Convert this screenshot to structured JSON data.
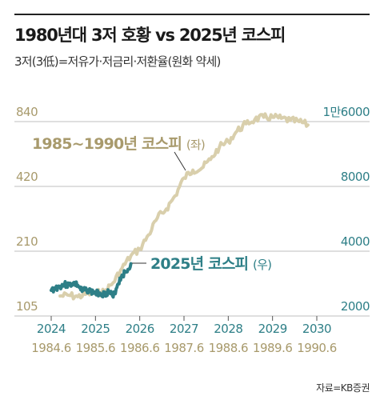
{
  "title": "1980년대 3저 호황 vs 2025년 코스피",
  "subtitle": "3저(3低)=저유가·저금리·저환율(원화 약세)",
  "source": "자료=KB증권",
  "colors": {
    "kospi_1980s": "#d9cfac",
    "kospi_2025": "#2e7f87",
    "label_1980s": "#a89a6c",
    "label_2025": "#2e7f87",
    "grid": "#bfbfbf"
  },
  "chart_data": {
    "type": "line",
    "title": "1980년대 3저 호황 vs 2025년 코스피",
    "grid": true,
    "axes": {
      "left_log_scale": true,
      "left_ticks": [
        "840",
        "420",
        "210",
        "105"
      ],
      "left_ylim": [
        105,
        1000
      ],
      "right_ticks": [
        "1만6000",
        "8000",
        "4000",
        "2000"
      ],
      "right_ylim": [
        2000,
        19000
      ],
      "x_bottom_ticks": [
        "2024",
        "2025",
        "2026",
        "2027",
        "2028",
        "2029",
        "2030"
      ],
      "x_top_ticks": [
        "1984.6",
        "1985.6",
        "1986.6",
        "1987.6",
        "1988.6",
        "1989.6",
        "1990.6"
      ]
    },
    "series": [
      {
        "name": "1985~1990년 코스피",
        "suffix": "(좌)",
        "axis": "left",
        "x": [
          1984.8,
          1985.0,
          1985.2,
          1985.4,
          1985.6,
          1985.8,
          1986.0,
          1986.2,
          1986.4,
          1986.6,
          1986.8,
          1987.0,
          1987.2,
          1987.4,
          1987.6,
          1987.8,
          1988.0,
          1988.2,
          1988.4,
          1988.6,
          1988.8,
          1989.0,
          1989.2,
          1989.4,
          1989.6,
          1989.8,
          1990.0,
          1990.2,
          1990.4
        ],
        "values": [
          130,
          131,
          129,
          133,
          134,
          136,
          150,
          175,
          200,
          215,
          250,
          300,
          330,
          380,
          460,
          500,
          510,
          560,
          640,
          680,
          760,
          820,
          860,
          880,
          880,
          870,
          850,
          840,
          810
        ]
      },
      {
        "name": "2025년 코스피",
        "suffix": "(우)",
        "axis": "right",
        "x": [
          2024.0,
          2024.1,
          2024.2,
          2024.3,
          2024.4,
          2024.5,
          2024.6,
          2024.7,
          2024.8,
          2024.9,
          2025.0,
          2025.1,
          2025.2,
          2025.3,
          2025.4,
          2025.5,
          2025.6,
          2025.7,
          2025.8
        ],
        "values": [
          2630,
          2700,
          2750,
          2800,
          2780,
          2850,
          2780,
          2600,
          2650,
          2600,
          2550,
          2560,
          2520,
          2600,
          2450,
          2800,
          3100,
          3200,
          3500
        ]
      }
    ]
  }
}
